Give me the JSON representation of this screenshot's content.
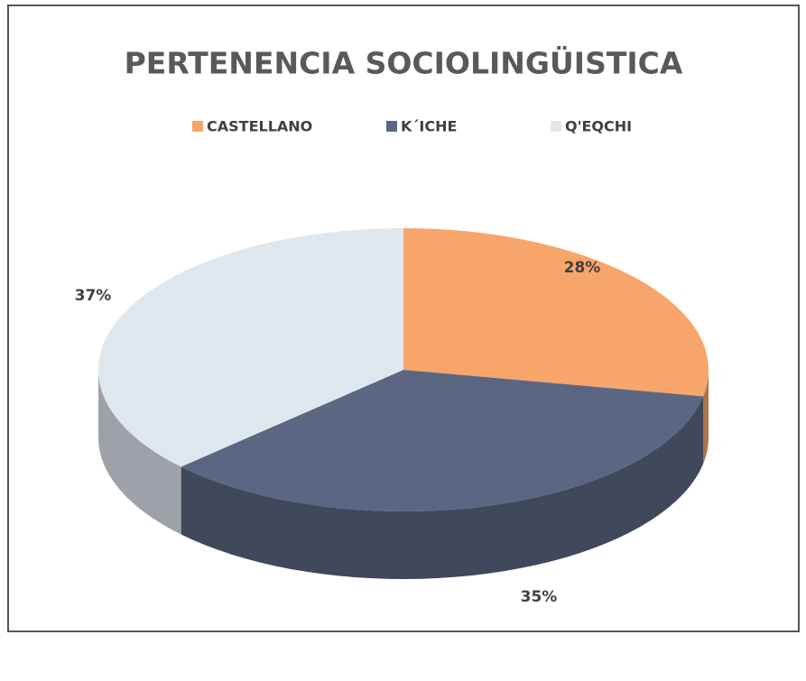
{
  "chart_data": {
    "type": "pie",
    "title": "PERTENENCIA SOCIOLINGÜISTICA",
    "categories": [
      "CASTELLANO",
      "K´ICHE",
      "Q'EQCHI"
    ],
    "values": [
      28,
      35,
      37
    ],
    "value_labels": [
      "28%",
      "35%",
      "37%"
    ],
    "colors": [
      "#f8a56b",
      "#5b6782",
      "#dfe7ee"
    ],
    "legend": "top"
  }
}
